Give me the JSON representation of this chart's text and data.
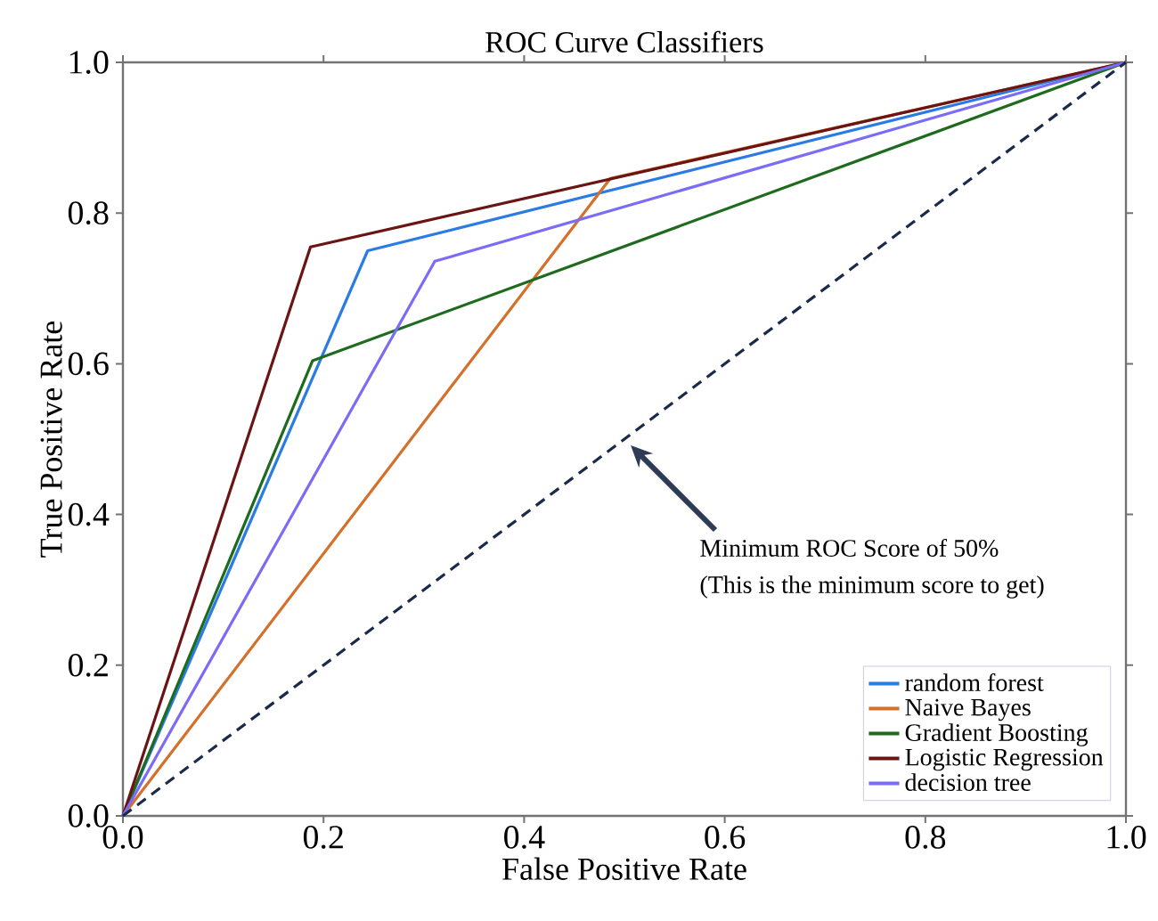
{
  "chart_data": {
    "type": "line",
    "title": "ROC Curve Classifiers",
    "xlabel": "False Positive Rate",
    "ylabel": "True Positive Rate",
    "xlim": [
      0,
      1
    ],
    "ylim": [
      0,
      1
    ],
    "xticks": [
      {
        "value": 0,
        "label": "0.0"
      },
      {
        "value": 0.2,
        "label": "0.2"
      },
      {
        "value": 0.4,
        "label": "0.4"
      },
      {
        "value": 0.6,
        "label": "0.6"
      },
      {
        "value": 0.8,
        "label": "0.8"
      },
      {
        "value": 1,
        "label": "1.0"
      }
    ],
    "yticks": [
      {
        "value": 0,
        "label": "0.0"
      },
      {
        "value": 0.2,
        "label": "0.2"
      },
      {
        "value": 0.4,
        "label": "0.4"
      },
      {
        "value": 0.6,
        "label": "0.6"
      },
      {
        "value": 0.8,
        "label": "0.8"
      },
      {
        "value": 1,
        "label": "1.0"
      }
    ],
    "series": [
      {
        "name": "random forest",
        "color": "#2a7be4",
        "x": [
          0,
          0.244,
          1
        ],
        "values": [
          0,
          0.75,
          1
        ]
      },
      {
        "name": "Naive Bayes",
        "color": "#d4702a",
        "x": [
          0,
          0.486,
          1
        ],
        "values": [
          0,
          0.846,
          1
        ]
      },
      {
        "name": "Gradient Boosting",
        "color": "#1e6b1e",
        "x": [
          0,
          0.189,
          1
        ],
        "values": [
          0,
          0.604,
          1
        ]
      },
      {
        "name": "Logistic Regression",
        "color": "#6b1414",
        "x": [
          0,
          0.187,
          1
        ],
        "values": [
          0,
          0.755,
          1
        ]
      },
      {
        "name": "decision tree",
        "color": "#7b6cf6",
        "x": [
          0,
          0.311,
          1
        ],
        "values": [
          0,
          0.736,
          1
        ]
      },
      {
        "color": "#1b2a4a",
        "x": [
          0,
          1
        ],
        "values": [
          0,
          1
        ],
        "line_style": "dashed"
      }
    ],
    "annotations": [
      "Minimum ROC Score of 50%",
      "(This is the minimum score to get)"
    ],
    "legend": "bottom right",
    "grid": false
  }
}
